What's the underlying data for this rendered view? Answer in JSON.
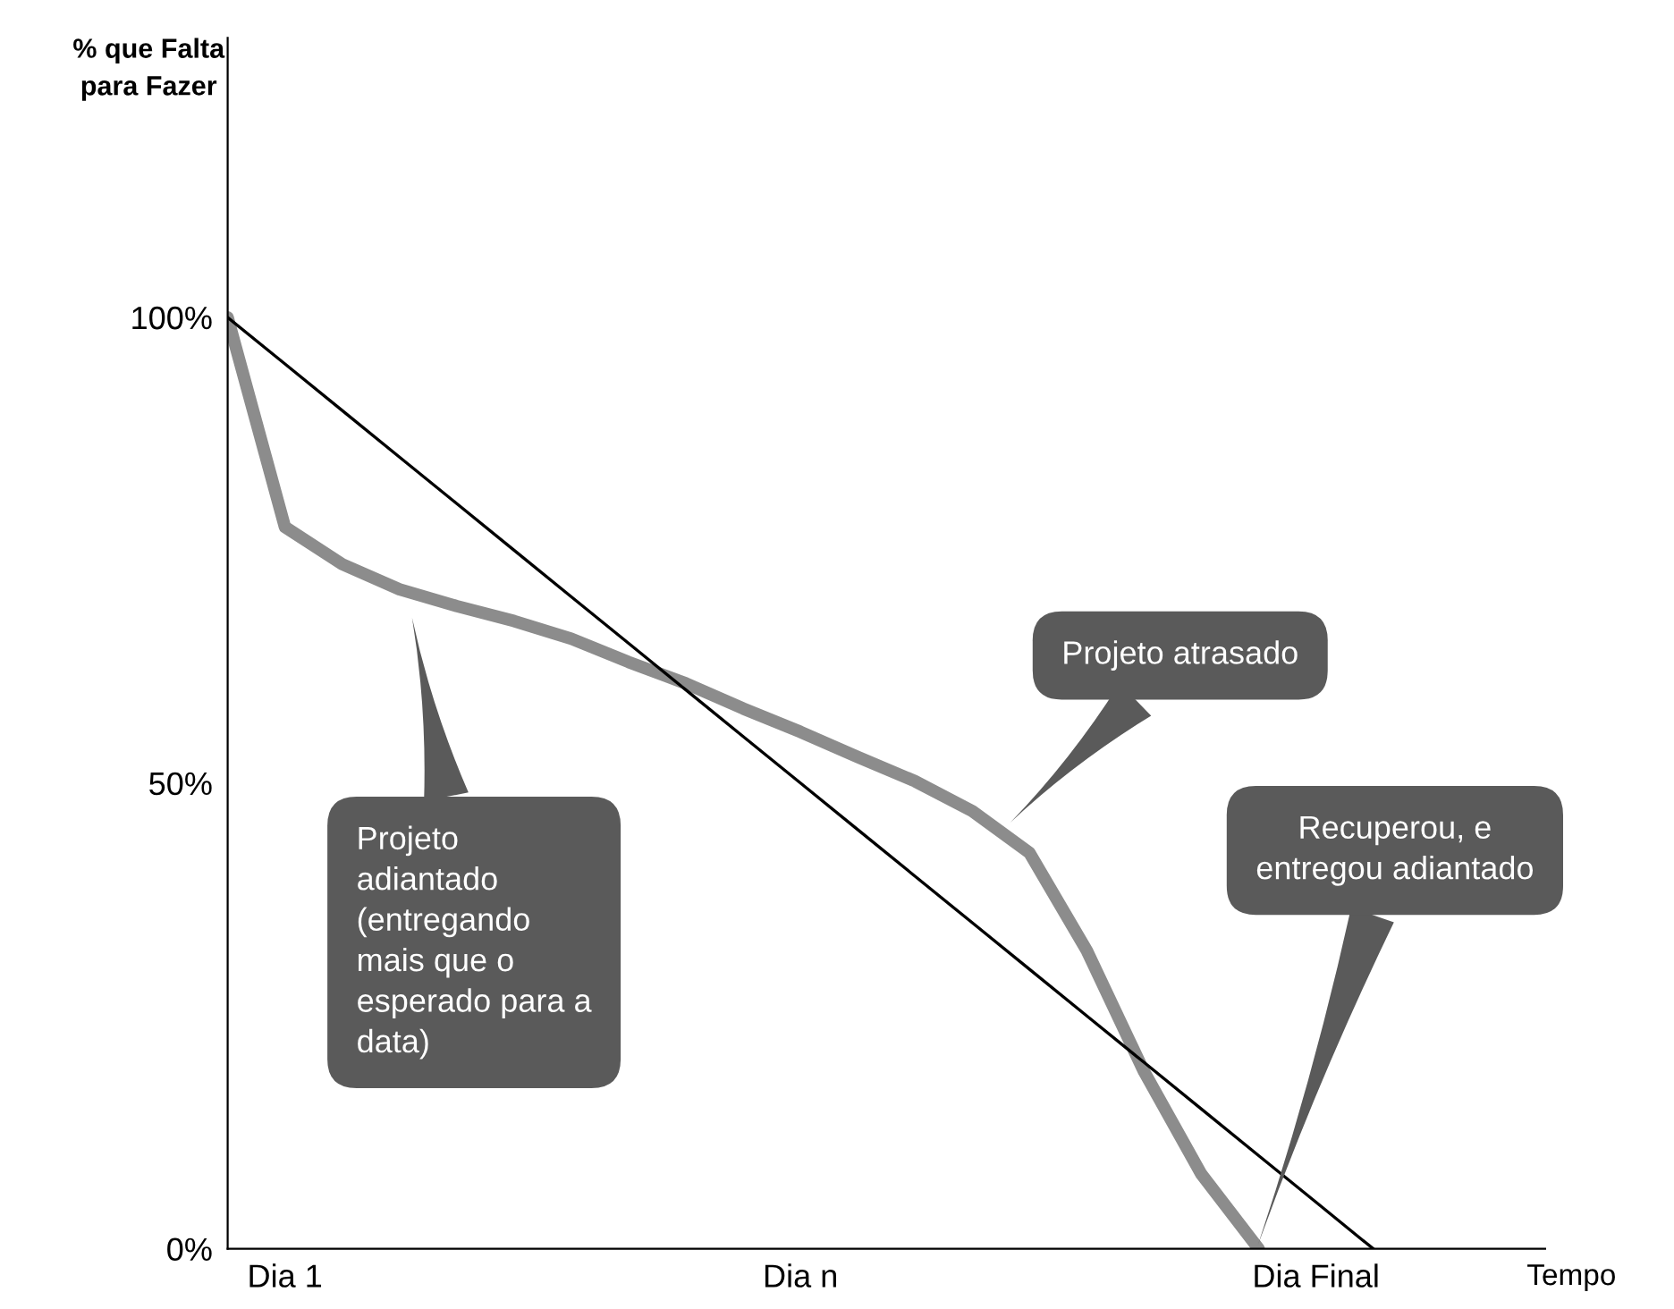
{
  "chart_data": {
    "type": "line",
    "ylabel": "% que Falta\npara Fazer",
    "xlabel": "Tempo",
    "ylim": [
      0,
      130
    ],
    "categories": [
      null,
      "Dia 1",
      null,
      null,
      null,
      null,
      null,
      null,
      null,
      null,
      "Dia n",
      null,
      null,
      null,
      null,
      null,
      null,
      null,
      null,
      "Dia Final",
      null
    ],
    "yticks": [
      {
        "value": 0,
        "label": "0%"
      },
      {
        "value": 50,
        "label": "50%"
      },
      {
        "value": 100,
        "label": "100%"
      }
    ],
    "series": [
      {
        "color": "#8c8c8c",
        "values": [
          100,
          77.5,
          73.5,
          70.8,
          69,
          67.4,
          65.5,
          63,
          60.7,
          58,
          55.5,
          52.8,
          50.2,
          47,
          42.5,
          32,
          19,
          8,
          0,
          null,
          null
        ]
      },
      {
        "color": "#000000",
        "values": [
          100,
          95,
          90,
          85,
          80,
          75,
          70,
          65,
          60,
          55,
          50,
          45,
          40,
          35,
          30,
          25,
          20,
          15,
          10,
          5,
          0
        ]
      }
    ],
    "annotations": [
      "Projeto atrasado",
      "Projeto\nadiantado\n(entregando\nmais que o\nesperado para a\ndata)",
      "Recuperou, e\nentregou adiantado"
    ],
    "marker": "none",
    "line_style": "solid",
    "legend": false,
    "grid": false
  }
}
